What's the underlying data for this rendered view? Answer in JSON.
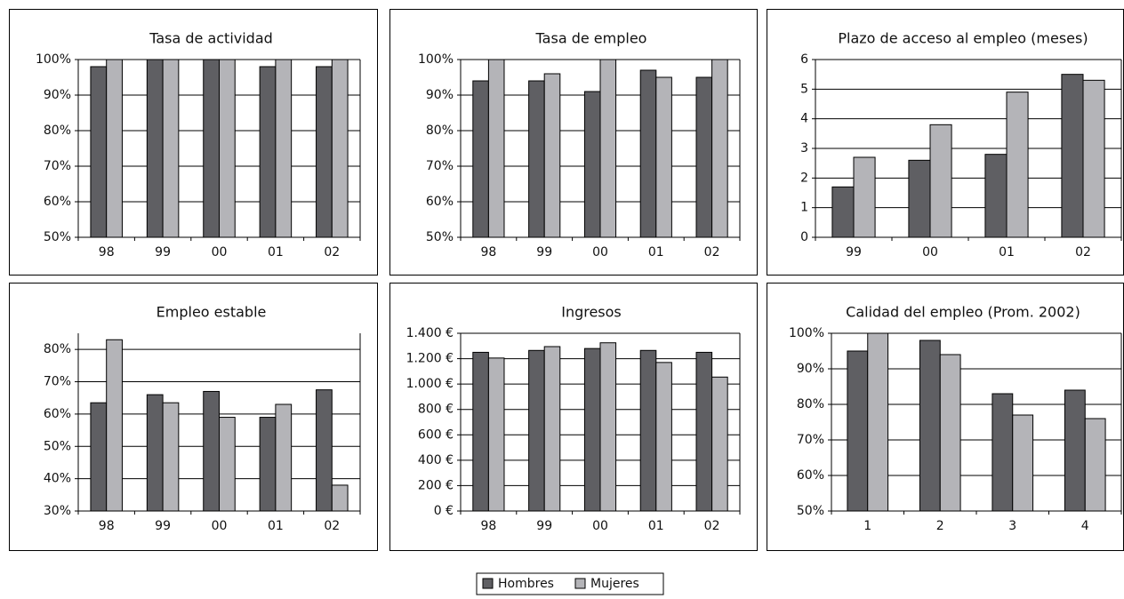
{
  "chart_data": [
    {
      "type": "bar",
      "title": "Tasa de actividad",
      "categories": [
        "98",
        "99",
        "00",
        "01",
        "02"
      ],
      "series": [
        {
          "name": "Hombres",
          "color": "#5f5f63",
          "values": [
            98,
            100,
            100,
            98,
            98
          ]
        },
        {
          "name": "Mujeres",
          "color": "#b4b4b8",
          "values": [
            100,
            100,
            100,
            100,
            100
          ]
        }
      ],
      "ylim": [
        50,
        100
      ],
      "yticks": [
        {
          "value": 50,
          "label": "50%"
        },
        {
          "value": 60,
          "label": "60%"
        },
        {
          "value": 70,
          "label": "70%"
        },
        {
          "value": 80,
          "label": "80%"
        },
        {
          "value": 90,
          "label": "90%"
        },
        {
          "value": 100,
          "label": "100%"
        }
      ],
      "grid": true
    },
    {
      "type": "bar",
      "title": "Tasa de empleo",
      "categories": [
        "98",
        "99",
        "00",
        "01",
        "02"
      ],
      "series": [
        {
          "name": "Hombres",
          "color": "#5f5f63",
          "values": [
            94,
            94,
            91,
            97,
            95
          ]
        },
        {
          "name": "Mujeres",
          "color": "#b4b4b8",
          "values": [
            100,
            96,
            100,
            95,
            100
          ]
        }
      ],
      "ylim": [
        50,
        100
      ],
      "yticks": [
        {
          "value": 50,
          "label": "50%"
        },
        {
          "value": 60,
          "label": "60%"
        },
        {
          "value": 70,
          "label": "70%"
        },
        {
          "value": 80,
          "label": "80%"
        },
        {
          "value": 90,
          "label": "90%"
        },
        {
          "value": 100,
          "label": "100%"
        }
      ],
      "grid": true
    },
    {
      "type": "bar",
      "title": "Plazo de acceso al empleo (meses)",
      "categories": [
        "99",
        "00",
        "01",
        "02"
      ],
      "series": [
        {
          "name": "Hombres",
          "color": "#5f5f63",
          "values": [
            1.7,
            2.6,
            2.8,
            5.5
          ]
        },
        {
          "name": "Mujeres",
          "color": "#b4b4b8",
          "values": [
            2.7,
            3.8,
            4.9,
            5.3
          ]
        }
      ],
      "ylim": [
        0,
        6
      ],
      "yticks": [
        0,
        1,
        2,
        3,
        4,
        5,
        6
      ],
      "grid": true
    },
    {
      "type": "bar",
      "title": "Empleo estable",
      "categories": [
        "98",
        "99",
        "00",
        "01",
        "02"
      ],
      "series": [
        {
          "name": "Hombres",
          "color": "#5f5f63",
          "values": [
            63.5,
            66,
            67,
            59,
            67.5
          ]
        },
        {
          "name": "Mujeres",
          "color": "#b4b4b8",
          "values": [
            83,
            63.5,
            59,
            63,
            38
          ]
        }
      ],
      "ylim": [
        30,
        85
      ],
      "yticks": [
        {
          "value": 30,
          "label": "30%"
        },
        {
          "value": 40,
          "label": "40%"
        },
        {
          "value": 50,
          "label": "50%"
        },
        {
          "value": 60,
          "label": "60%"
        },
        {
          "value": 70,
          "label": "70%"
        },
        {
          "value": 80,
          "label": "80%"
        }
      ],
      "grid": true
    },
    {
      "type": "bar",
      "title": "Ingresos",
      "categories": [
        "98",
        "99",
        "00",
        "01",
        "02"
      ],
      "series": [
        {
          "name": "Hombres",
          "color": "#5f5f63",
          "values": [
            1250,
            1265,
            1280,
            1265,
            1250
          ]
        },
        {
          "name": "Mujeres",
          "color": "#b4b4b8",
          "values": [
            1205,
            1295,
            1325,
            1170,
            1055
          ]
        }
      ],
      "ylim": [
        0,
        1400
      ],
      "yticks": [
        {
          "value": 0,
          "label": "0 €"
        },
        {
          "value": 200,
          "label": "200 €"
        },
        {
          "value": 400,
          "label": "400 €"
        },
        {
          "value": 600,
          "label": "600 €"
        },
        {
          "value": 800,
          "label": "800 €"
        },
        {
          "value": 1000,
          "label": "1.000 €"
        },
        {
          "value": 1200,
          "label": "1.200 €"
        },
        {
          "value": 1400,
          "label": "1.400 €"
        }
      ],
      "grid": true
    },
    {
      "type": "bar",
      "title": "Calidad del empleo (Prom. 2002)",
      "categories": [
        "1",
        "2",
        "3",
        "4"
      ],
      "series": [
        {
          "name": "Hombres",
          "color": "#5f5f63",
          "values": [
            95,
            98,
            83,
            84
          ]
        },
        {
          "name": "Mujeres",
          "color": "#b4b4b8",
          "values": [
            100,
            94,
            77,
            76
          ]
        }
      ],
      "ylim": [
        50,
        100
      ],
      "yticks": [
        {
          "value": 50,
          "label": "50%"
        },
        {
          "value": 60,
          "label": "60%"
        },
        {
          "value": 70,
          "label": "70%"
        },
        {
          "value": 80,
          "label": "80%"
        },
        {
          "value": 90,
          "label": "90%"
        },
        {
          "value": 100,
          "label": "100%"
        }
      ],
      "grid": true
    }
  ]
}
